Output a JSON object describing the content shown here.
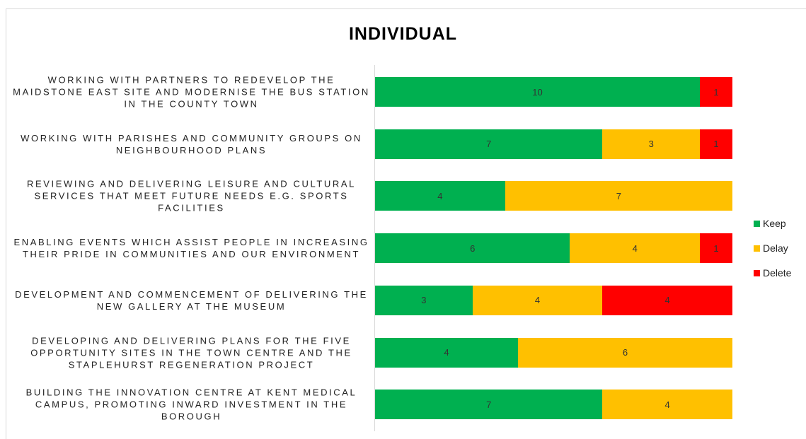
{
  "chart_data": {
    "type": "bar",
    "orientation": "horizontal",
    "stacking": "percent",
    "title": "INDIVIDUAL",
    "categories": [
      "WORKING WITH PARTNERS TO REDEVELOP THE MAIDSTONE EAST SITE AND MODERNISE THE BUS STATION IN THE COUNTY TOWN",
      "WORKING WITH PARISHES AND COMMUNITY GROUPS ON NEIGHBOURHOOD PLANS",
      "REVIEWING AND DELIVERING LEISURE AND CULTURAL SERVICES THAT MEET FUTURE NEEDS E.G. SPORTS FACILITIES",
      "ENABLING EVENTS WHICH ASSIST PEOPLE IN INCREASING THEIR PRIDE IN COMMUNITIES AND OUR ENVIRONMENT",
      "DEVELOPMENT AND COMMENCEMENT OF DELIVERING THE NEW GALLERY AT THE MUSEUM",
      "DEVELOPING AND DELIVERING PLANS FOR THE FIVE OPPORTUNITY SITES IN THE TOWN CENTRE AND THE STAPLEHURST REGENERATION PROJECT",
      "BUILDING THE INNOVATION CENTRE AT KENT MEDICAL CAMPUS, PROMOTING INWARD INVESTMENT IN THE BOROUGH"
    ],
    "series": [
      {
        "name": "Keep",
        "color": "#00b050",
        "values": [
          10,
          7,
          4,
          6,
          3,
          4,
          7
        ]
      },
      {
        "name": "Delay",
        "color": "#ffc000",
        "values": [
          null,
          3,
          7,
          4,
          4,
          6,
          4
        ]
      },
      {
        "name": "Delete",
        "color": "#ff0000",
        "values": [
          1,
          1,
          null,
          1,
          4,
          null,
          null
        ]
      }
    ],
    "legend": "right"
  }
}
